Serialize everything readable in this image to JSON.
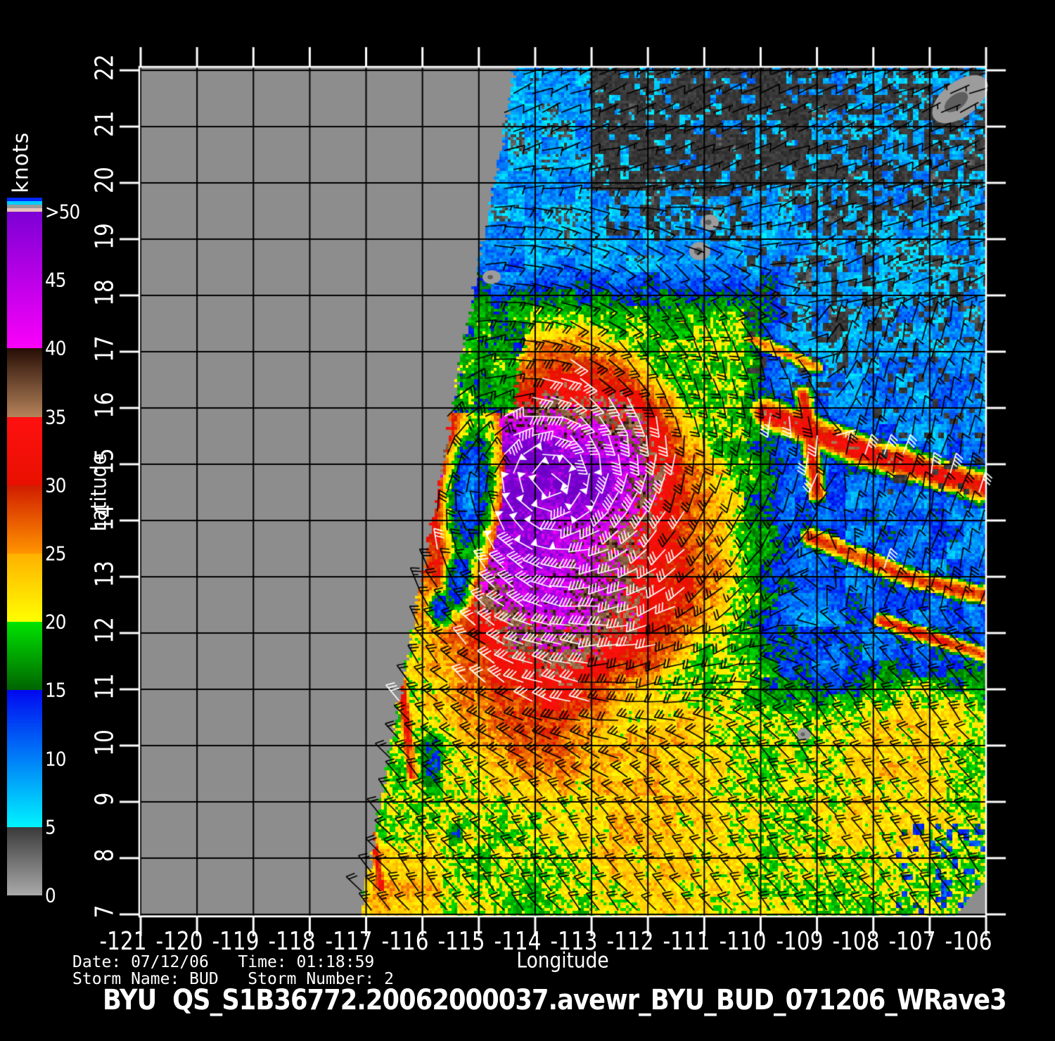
{
  "colors": {
    "background": "#000000",
    "no_data_gray": "#8d8d8d",
    "grid": "#000000",
    "plot_border": "#ffffff",
    "rain_flag_dark": "#383838",
    "island_gray": "#9c9c9c",
    "island_core": "#5e5e5e",
    "barb_low": "#000000",
    "barb_high": "#ffffff"
  },
  "colorbar": {
    "title": "knots",
    "stripes": [
      "#0028ff",
      "#00ccff",
      "#9a9a9a",
      "#e8c4bc"
    ],
    "segments": [
      {
        "from_kt": 50,
        "to_kt": 40,
        "top": "#7c00d4",
        "bottom": "#fa00fa"
      },
      {
        "from_kt": 40,
        "to_kt": 35,
        "top": "#260d05",
        "bottom": "#b5835a"
      },
      {
        "from_kt": 35,
        "to_kt": 30,
        "top": "#ff1010",
        "bottom": "#e81000"
      },
      {
        "from_kt": 30,
        "to_kt": 25,
        "top": "#d01c00",
        "bottom": "#ff9400"
      },
      {
        "from_kt": 25,
        "to_kt": 20,
        "top": "#ffb000",
        "bottom": "#ffff00"
      },
      {
        "from_kt": 20,
        "to_kt": 15,
        "top": "#00e400",
        "bottom": "#006400"
      },
      {
        "from_kt": 15,
        "to_kt": 5,
        "top": "#0008f0",
        "bottom": "#00f4ff"
      },
      {
        "from_kt": 5,
        "to_kt": 0,
        "top": "#3a3a3a",
        "bottom": "#aaaaaa"
      }
    ],
    "tick_labels": [
      {
        "value": 50,
        "label": ">50"
      },
      {
        "value": 45,
        "label": "45"
      },
      {
        "value": 40,
        "label": "40"
      },
      {
        "value": 35,
        "label": "35"
      },
      {
        "value": 30,
        "label": "30"
      },
      {
        "value": 25,
        "label": "25"
      },
      {
        "value": 20,
        "label": "20"
      },
      {
        "value": 15,
        "label": "15"
      },
      {
        "value": 10,
        "label": "10"
      },
      {
        "value": 5,
        "label": "5"
      },
      {
        "value": 0,
        "label": "0"
      }
    ]
  },
  "axes": {
    "x": {
      "label": "Longitude",
      "ticks": [
        {
          "value": -121,
          "label": "-121"
        },
        {
          "value": -120,
          "label": "-120"
        },
        {
          "value": -119,
          "label": "-119"
        },
        {
          "value": -118,
          "label": "-118"
        },
        {
          "value": -117,
          "label": "-117"
        },
        {
          "value": -116,
          "label": "-116"
        },
        {
          "value": -115,
          "label": "-115"
        },
        {
          "value": -114,
          "label": "-114"
        },
        {
          "value": -113,
          "label": "-113"
        },
        {
          "value": -112,
          "label": "-112"
        },
        {
          "value": -111,
          "label": "-111"
        },
        {
          "value": -110,
          "label": "-110"
        },
        {
          "value": -109,
          "label": "-109"
        },
        {
          "value": -108,
          "label": "-108"
        },
        {
          "value": -107,
          "label": "-107"
        },
        {
          "value": -106,
          "label": "-106"
        }
      ]
    },
    "y": {
      "label": "Latitude",
      "ticks": [
        {
          "value": 22,
          "label": "22"
        },
        {
          "value": 21,
          "label": "21"
        },
        {
          "value": 20,
          "label": "20"
        },
        {
          "value": 19,
          "label": "19"
        },
        {
          "value": 18,
          "label": "18"
        },
        {
          "value": 17,
          "label": "17"
        },
        {
          "value": 16,
          "label": "16"
        },
        {
          "value": 15,
          "label": "15"
        },
        {
          "value": 14,
          "label": "14"
        },
        {
          "value": 13,
          "label": "13"
        },
        {
          "value": 12,
          "label": "12"
        },
        {
          "value": 11,
          "label": "11"
        },
        {
          "value": 10,
          "label": "10"
        },
        {
          "value": 9,
          "label": "9"
        },
        {
          "value": 8,
          "label": "8"
        },
        {
          "value": 7,
          "label": "7"
        }
      ]
    }
  },
  "footer": {
    "date_line": "Date: 07/12/06   Time: 01:18:59",
    "storm_line": "Storm Name: BUD   Storm Number: 2",
    "title": "BYU  QS_S1B36772.20062000037.avewr_BYU_BUD_071206_WRave3"
  },
  "chart_data": {
    "type": "heatmap",
    "title": "BYU QS_S1B36772.20062000037.avewr_BYU_BUD_071206_WRave3",
    "subtitle_lines": [
      "Date: 07/12/06  Time: 01:18:59",
      "Storm Name: BUD  Storm Number: 2"
    ],
    "xlabel": "Longitude",
    "ylabel": "Latitude",
    "xlim": [
      -121,
      -106
    ],
    "ylim": [
      7,
      22
    ],
    "grid": true,
    "units": "knots",
    "colormap_knots": [
      [
        0,
        "#aaaaaa"
      ],
      [
        5,
        "#00f4ff"
      ],
      [
        15,
        "#0008f0"
      ],
      [
        15.01,
        "#006400"
      ],
      [
        20,
        "#00e400"
      ],
      [
        20.01,
        "#ffff00"
      ],
      [
        25,
        "#ffb000"
      ],
      [
        25.01,
        "#ff9400"
      ],
      [
        30,
        "#d01c00"
      ],
      [
        30.01,
        "#e81000"
      ],
      [
        35,
        "#ff1010"
      ],
      [
        35.01,
        "#b5835a"
      ],
      [
        40,
        "#260d05"
      ],
      [
        40.01,
        "#fa00fa"
      ],
      [
        50,
        "#7c00d4"
      ]
    ],
    "storm": {
      "name": "BUD",
      "number": 2,
      "center_lon": -113.75,
      "center_lat": 14.75,
      "peak_wind_kt": ">50",
      "core_wind_kt_range": [
        40,
        55
      ]
    },
    "swath": {
      "left_edge_lon_at_lat22": -114.35,
      "left_edge_lon_at_lat7": -117.1,
      "no_data_west_of_edge": true
    },
    "wind_barbs": {
      "barb_full_kt": 10,
      "barb_half_kt": 5,
      "pennant_kt": 50,
      "black_barbs_below_kt": 29,
      "white_barbs_at_or_above_kt": 29
    },
    "regions": [
      {
        "area": "north of lat 17.5",
        "wind_kt": "5-14",
        "appearance": "cyan-blue with dark rain-flagged speckle patches"
      },
      {
        "area": "hurricane core near -113.8, 14.8",
        "wind_kt": "40->50",
        "appearance": "magenta/brown speckle surrounded by broad red ring"
      },
      {
        "area": "west moat near -115.6, 14.3-13.5",
        "wind_kt": "10-14",
        "appearance": "blue notch wrapped in green rim"
      },
      {
        "area": "east pool lon -110..-106, lat 10-17",
        "wind_kt": "7-13 with 28-35 streaks",
        "appearance": "blue with diagonal red/orange streaks"
      },
      {
        "area": "south of lat 11",
        "wind_kt": "16-25",
        "appearance": "green with yellow/orange patches"
      }
    ],
    "islands_gray_blobs_lonlat": [
      [
        -106.45,
        21.45
      ],
      [
        -110.9,
        19.3
      ],
      [
        -111.1,
        18.8
      ],
      [
        -114.8,
        18.3
      ],
      [
        -109.25,
        10.2
      ]
    ]
  }
}
